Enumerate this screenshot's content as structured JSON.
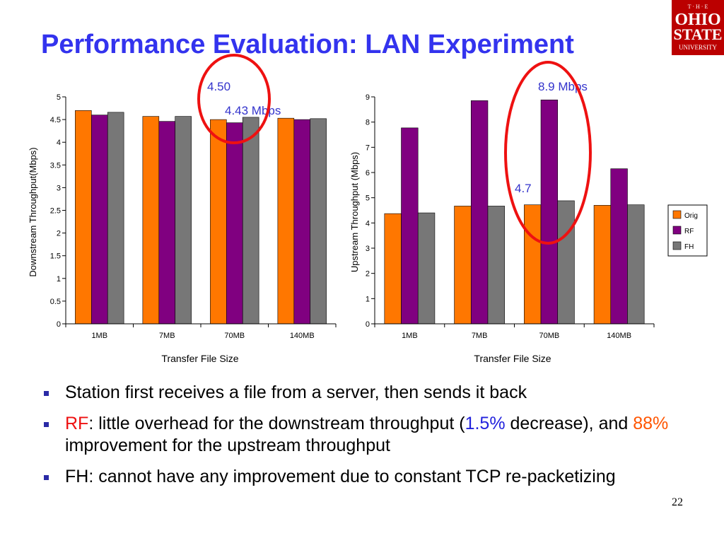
{
  "slide": {
    "title": "Performance Evaluation: LAN Experiment",
    "page_number": "22"
  },
  "logo": {
    "top_text": "T · H · E",
    "line1": "OHIO",
    "line2": "STATE",
    "line3": "UNIVERSITY",
    "color": "#bb0000"
  },
  "bullets": [
    {
      "segments": [
        {
          "text": "Station first receives a file from a server, then sends it back",
          "style": ""
        }
      ]
    },
    {
      "segments": [
        {
          "text": "RF",
          "style": "red"
        },
        {
          "text": ": little overhead for the downstream throughput (",
          "style": ""
        },
        {
          "text": "1.5%",
          "style": "blue"
        },
        {
          "text": " decrease), and ",
          "style": ""
        },
        {
          "text": "88%",
          "style": "orange"
        },
        {
          "text": " improvement for the upstream throughput",
          "style": ""
        }
      ]
    },
    {
      "segments": [
        {
          "text": "FH: cannot have any improvement due to constant TCP re-packetizing",
          "style": ""
        }
      ]
    }
  ],
  "chart_data": [
    {
      "type": "bar",
      "title": "",
      "xlabel": "Transfer File Size",
      "ylabel": "Downstream Throughput(Mbps)",
      "ylim": [
        0,
        5
      ],
      "yticks": [
        "0",
        "0.5",
        "1",
        "1.5",
        "2",
        "2.5",
        "3",
        "3.5",
        "4",
        "4.5",
        "5"
      ],
      "grid": false,
      "categories": [
        "1MB",
        "7MB",
        "70MB",
        "140MB"
      ],
      "series": [
        {
          "name": "Orig",
          "color": "#ff7700",
          "values": [
            4.7,
            4.57,
            4.5,
            4.53
          ]
        },
        {
          "name": "RF",
          "color": "#800080",
          "values": [
            4.6,
            4.46,
            4.43,
            4.5
          ]
        },
        {
          "name": "FH",
          "color": "#777777",
          "values": [
            4.66,
            4.57,
            4.55,
            4.52
          ]
        }
      ],
      "annotations": [
        "4.50",
        "4.43 Mbps"
      ],
      "annotation_color": "#3333cc",
      "highlight_color": "#ee1111"
    },
    {
      "type": "bar",
      "title": "",
      "xlabel": "Transfer File Size",
      "ylabel": "Upstream Throughput (Mbps)",
      "ylim": [
        0,
        9
      ],
      "yticks": [
        "0",
        "1",
        "2",
        "3",
        "4",
        "5",
        "6",
        "7",
        "8",
        "9"
      ],
      "grid": false,
      "legend": "right",
      "categories": [
        "1MB",
        "7MB",
        "70MB",
        "140MB"
      ],
      "series": [
        {
          "name": "Orig",
          "color": "#ff7700",
          "values": [
            4.37,
            4.67,
            4.72,
            4.7
          ]
        },
        {
          "name": "RF",
          "color": "#800080",
          "values": [
            7.77,
            8.85,
            8.88,
            6.15
          ]
        },
        {
          "name": "FH",
          "color": "#777777",
          "values": [
            4.4,
            4.67,
            4.88,
            4.72
          ]
        }
      ],
      "annotations": [
        "8.9 Mbps",
        "4.7"
      ],
      "annotation_color": "#3333cc",
      "highlight_color": "#ee1111"
    }
  ]
}
